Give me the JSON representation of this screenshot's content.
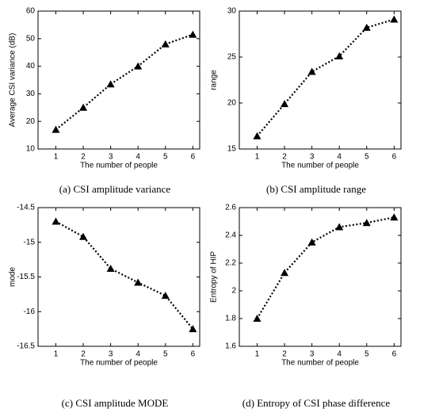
{
  "chart_data": [
    {
      "type": "line",
      "caption": "(a)  CSI amplitude variance",
      "xlabel": "The number of people",
      "ylabel": "Average CSI variance (dB)",
      "x": [
        1,
        2,
        3,
        4,
        5,
        6
      ],
      "series": [
        {
          "color": "#000000",
          "values": [
            17,
            25,
            33.5,
            40,
            48,
            51.5
          ]
        }
      ],
      "xlim": [
        0.35,
        6.25
      ],
      "xticks": [
        1,
        2,
        3,
        4,
        5,
        6
      ],
      "ylim": [
        10,
        60
      ],
      "yticks": [
        10,
        20,
        30,
        40,
        50,
        60
      ]
    },
    {
      "type": "line",
      "caption": "(b)  CSI amplitude range",
      "xlabel": "The number of people",
      "ylabel": "range",
      "x": [
        1,
        2,
        3,
        4,
        5,
        6
      ],
      "series": [
        {
          "color": "#000000",
          "values": [
            16.4,
            19.9,
            23.4,
            25.1,
            28.2,
            29.1
          ]
        }
      ],
      "xlim": [
        0.35,
        6.25
      ],
      "xticks": [
        1,
        2,
        3,
        4,
        5,
        6
      ],
      "ylim": [
        15,
        30
      ],
      "yticks": [
        15,
        20,
        25,
        30
      ]
    },
    {
      "type": "line",
      "caption": "(c)  CSI amplitude MODE",
      "xlabel": "The number of people",
      "ylabel": "mode",
      "x": [
        1,
        2,
        3,
        4,
        5,
        6
      ],
      "series": [
        {
          "color": "#000000",
          "values": [
            -14.7,
            -14.92,
            -15.38,
            -15.58,
            -15.77,
            -16.25
          ]
        }
      ],
      "xlim": [
        0.35,
        6.25
      ],
      "xticks": [
        1,
        2,
        3,
        4,
        5,
        6
      ],
      "ylim": [
        -16.5,
        -14.5
      ],
      "yticks": [
        -16.5,
        -16,
        -15.5,
        -15,
        -14.5
      ]
    },
    {
      "type": "line",
      "caption": "(d)  Entropy of CSI phase difference",
      "xlabel": "The number of people",
      "ylabel": "Entropy of HIP",
      "x": [
        1,
        2,
        3,
        4,
        5,
        6
      ],
      "series": [
        {
          "color": "#000000",
          "values": [
            1.8,
            2.13,
            2.35,
            2.46,
            2.49,
            2.53
          ]
        }
      ],
      "xlim": [
        0.35,
        6.25
      ],
      "xticks": [
        1,
        2,
        3,
        4,
        5,
        6
      ],
      "ylim": [
        1.6,
        2.6
      ],
      "yticks": [
        1.6,
        1.8,
        2,
        2.2,
        2.4,
        2.6
      ]
    }
  ]
}
